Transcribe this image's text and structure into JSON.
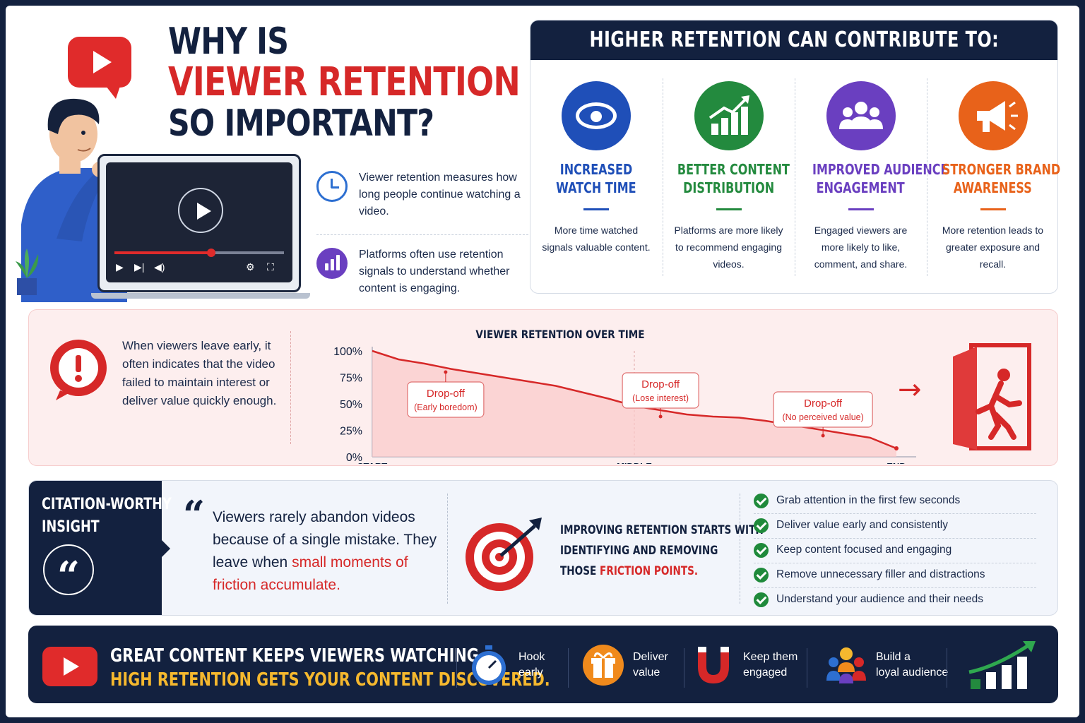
{
  "hero": {
    "title_line1": "WHY IS",
    "title_line2": "VIEWER RETENTION",
    "title_line3": "SO IMPORTANT?",
    "video_progress": 0.57,
    "points": [
      {
        "icon": "clock-icon",
        "text": "Viewer retention measures how long people continue watching a video."
      },
      {
        "icon": "bar-chart-icon",
        "text": "Platforms often use retention signals to understand whether content is engaging."
      }
    ]
  },
  "benefits": {
    "heading": "HIGHER RETENTION CAN CONTRIBUTE TO:",
    "items": [
      {
        "icon": "eye-icon",
        "title_line1": "INCREASED",
        "title_line2": "WATCH TIME",
        "text": "More time watched signals valuable content.",
        "color": "#1f4fb8"
      },
      {
        "icon": "growth-chart-icon",
        "title_line1": "BETTER CONTENT",
        "title_line2": "DISTRIBUTION",
        "text": "Platforms are more likely to recommend engaging videos.",
        "color": "#238a3e"
      },
      {
        "icon": "audience-icon",
        "title_line1": "IMPROVED AUDIENCE",
        "title_line2": "ENGAGEMENT",
        "text": "Engaged viewers are more likely to like, comment, and share.",
        "color": "#6a3fc0"
      },
      {
        "icon": "megaphone-icon",
        "title_line1": "STRONGER BRAND",
        "title_line2": "AWARENESS",
        "text": "More retention leads to greater exposure and recall.",
        "color": "#e8621a"
      }
    ]
  },
  "retention": {
    "text": "When viewers leave early, it often indicates that the video failed to maintain interest or deliver value quickly enough.",
    "arrow": "→"
  },
  "chart_data": {
    "type": "area",
    "title": "VIEWER RETENTION OVER TIME",
    "x_tick_labels": [
      "START",
      "MIDDLE",
      "END"
    ],
    "y_tick_labels": [
      "100%",
      "75%",
      "50%",
      "25%",
      "0%"
    ],
    "ylim": [
      0,
      100
    ],
    "x": [
      0,
      0.05,
      0.1,
      0.15,
      0.2,
      0.25,
      0.3,
      0.35,
      0.4,
      0.45,
      0.5,
      0.55,
      0.6,
      0.65,
      0.7,
      0.75,
      0.8,
      0.85,
      0.9,
      0.95,
      1.0
    ],
    "values": [
      100,
      92,
      88,
      83,
      79,
      75,
      71,
      67,
      61,
      55,
      48,
      44,
      40,
      38,
      37,
      34,
      30,
      26,
      22,
      18,
      8
    ],
    "annotations": [
      {
        "label": "Drop-off",
        "sub": "(Early boredom)",
        "x": 0.14,
        "y": 80
      },
      {
        "label": "Drop-off",
        "sub": "(Lose interest)",
        "x": 0.55,
        "y": 38
      },
      {
        "label": "Drop-off",
        "sub": "(No perceived value)",
        "x": 0.86,
        "y": 20
      }
    ],
    "line_color": "#d62828",
    "fill_color": "#f9c9c9"
  },
  "insight": {
    "label_line1": "CITATION-WORTHY",
    "label_line2": "INSIGHT",
    "quote_glyph": "“",
    "quote_mark": "“",
    "quote_plain": "Viewers rarely abandon videos because of a single mistake. They leave when ",
    "quote_highlight": "small moments of friction accumulate.",
    "improve_line1": "IMPROVING RETENTION STARTS WITH",
    "improve_line2": "IDENTIFYING AND REMOVING",
    "improve_line3_plain": "THOSE ",
    "improve_line3_highlight": "FRICTION POINTS.",
    "checklist": [
      "Grab attention in the first few seconds",
      "Deliver value early and consistently",
      "Keep content focused and engaging",
      "Remove unnecessary filler and distractions",
      "Understand your audience and their needs"
    ]
  },
  "footer": {
    "tagline_line1": "GREAT CONTENT KEEPS VIEWERS WATCHING.",
    "tagline_line2": "HIGH RETENTION GETS YOUR CONTENT DISCOVERED.",
    "items": [
      {
        "icon": "stopwatch-icon",
        "line1": "Hook",
        "line2": "early"
      },
      {
        "icon": "gift-icon",
        "line1": "Deliver",
        "line2": "value"
      },
      {
        "icon": "magnet-icon",
        "line1": "Keep them",
        "line2": "engaged"
      },
      {
        "icon": "community-icon",
        "line1": "Build a",
        "line2": "loyal audience"
      }
    ]
  }
}
